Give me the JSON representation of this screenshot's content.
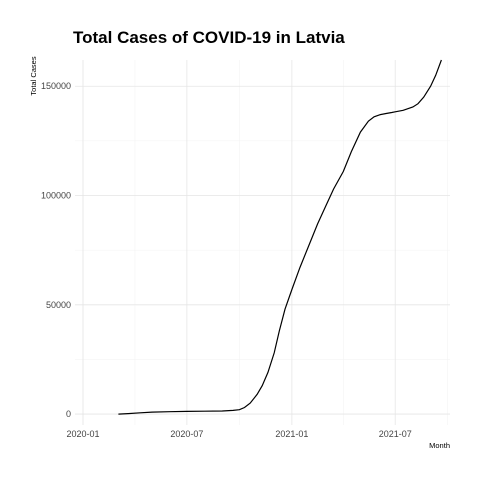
{
  "chart_data": {
    "type": "line",
    "title": "Total Cases of COVID-19 in Latvia",
    "xlabel": "Month",
    "ylabel": "Total Cases",
    "xlim": [
      "2019-12-18",
      "2021-10-05"
    ],
    "ylim": [
      -5000,
      162000
    ],
    "x_ticks": [
      "2020-01",
      "2020-07",
      "2021-01",
      "2021-07"
    ],
    "x_tick_dates": [
      "2020-01-01",
      "2020-07-01",
      "2021-01-01",
      "2021-07-01"
    ],
    "x_minor_dates": [
      "2020-04-01",
      "2020-10-01",
      "2021-04-01",
      "2021-10-01"
    ],
    "y_ticks": [
      0,
      50000,
      100000,
      150000
    ],
    "y_tick_labels": [
      "0",
      "50000",
      "100000",
      "150000"
    ],
    "y_minor": [
      25000,
      75000,
      125000
    ],
    "grid": true,
    "series": [
      {
        "x": [
          "2020-03-03",
          "2020-03-20",
          "2020-04-10",
          "2020-05-01",
          "2020-06-01",
          "2020-07-01",
          "2020-08-01",
          "2020-09-01",
          "2020-09-20",
          "2020-10-01",
          "2020-10-10",
          "2020-10-20",
          "2020-11-01",
          "2020-11-10",
          "2020-11-20",
          "2020-12-01",
          "2020-12-10",
          "2020-12-20",
          "2021-01-01",
          "2021-01-15",
          "2021-02-01",
          "2021-02-15",
          "2021-03-01",
          "2021-03-15",
          "2021-04-01",
          "2021-04-15",
          "2021-05-01",
          "2021-05-15",
          "2021-05-25",
          "2021-06-05",
          "2021-06-15",
          "2021-06-25",
          "2021-07-01",
          "2021-07-15",
          "2021-08-01",
          "2021-08-10",
          "2021-08-20",
          "2021-09-01",
          "2021-09-10",
          "2021-09-20"
        ],
        "y": [
          0,
          200,
          600,
          900,
          1100,
          1200,
          1300,
          1400,
          1700,
          2000,
          3000,
          5000,
          9000,
          13000,
          19000,
          28000,
          38000,
          48000,
          57000,
          67000,
          78000,
          87000,
          95000,
          103000,
          111000,
          120000,
          129000,
          134000,
          136000,
          137000,
          137500,
          138000,
          138300,
          139000,
          140500,
          142000,
          145000,
          150000,
          155000,
          162000
        ]
      }
    ]
  }
}
